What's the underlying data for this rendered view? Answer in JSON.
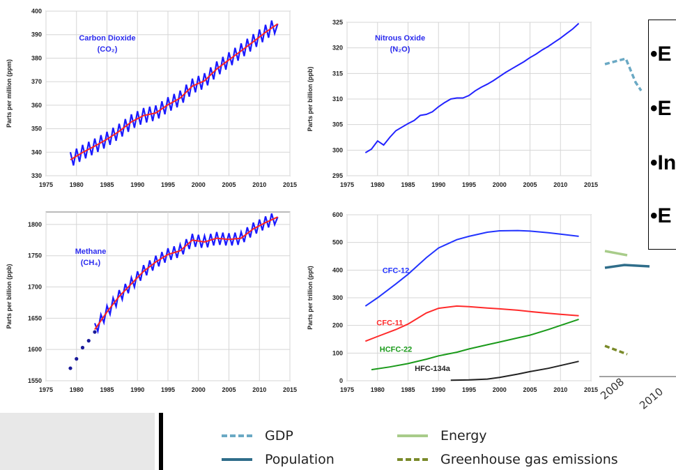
{
  "colors": {
    "co2_monthly": "#1a1aff",
    "co2_trend": "#ff2222",
    "n2o": "#2222ff",
    "ch4_monthly": "#1a1aff",
    "ch4_trend": "#ff2222",
    "ch4_flask": "#1a1a9a",
    "cfc12": "#2233ff",
    "cfc11": "#ff2a2a",
    "hcfc22": "#1a9a1a",
    "hfc134a": "#222222",
    "gdp": "#6aa9c4",
    "population": "#2f6d8a",
    "energy": "#a8cc8a",
    "ghg": "#7a8a2a"
  },
  "chart_data": [
    {
      "type": "line",
      "annotation": [
        "Carbon Dioxide",
        "(CO₂)"
      ],
      "ylabel": "Parts per million (ppm)",
      "xlim": [
        1975,
        2015
      ],
      "ylim": [
        330,
        400
      ],
      "xticks": [
        "1975",
        "1980",
        "1985",
        "1990",
        "1995",
        "2000",
        "2005",
        "2010",
        "2015"
      ],
      "yticks": [
        "330",
        "340",
        "350",
        "360",
        "370",
        "380",
        "390",
        "400"
      ],
      "series": [
        {
          "kind": "seasonal",
          "x": [
            1979,
            1981,
            1983,
            1985,
            1987,
            1989,
            1991,
            1993,
            1995,
            1997,
            1999,
            2001,
            2003,
            2005,
            2007,
            2009,
            2011,
            2013
          ],
          "y": [
            336.8,
            339.9,
            342.6,
            345.5,
            348.9,
            352.9,
            355.6,
            356.7,
            360.2,
            363.0,
            368.1,
            370.4,
            375.4,
            379.3,
            383.1,
            387.0,
            391.0,
            394.6
          ],
          "amplitude": 3.2
        },
        {
          "kind": "trend",
          "x": [
            1979,
            1981,
            1983,
            1985,
            1987,
            1989,
            1991,
            1993,
            1995,
            1997,
            1999,
            2001,
            2003,
            2005,
            2007,
            2009,
            2011,
            2013
          ],
          "y": [
            336.8,
            339.9,
            342.6,
            345.5,
            348.9,
            352.9,
            355.6,
            356.7,
            360.2,
            363.0,
            368.1,
            370.4,
            375.4,
            379.3,
            383.1,
            387.0,
            391.0,
            394.6
          ]
        }
      ]
    },
    {
      "type": "line",
      "annotation": [
        "Nitrous Oxide",
        "(N₂O)"
      ],
      "ylabel": "Parts per billion (ppb)",
      "xlim": [
        1975,
        2015
      ],
      "ylim": [
        295,
        325
      ],
      "xticks": [
        "1975",
        "1980",
        "1985",
        "1990",
        "1995",
        "2000",
        "2005",
        "2010",
        "2015"
      ],
      "yticks": [
        "295",
        "300",
        "305",
        "310",
        "315",
        "320",
        "325"
      ],
      "series": [
        {
          "x": [
            1978,
            1979,
            1980,
            1981,
            1982,
            1983,
            1984,
            1985,
            1986,
            1987,
            1988,
            1989,
            1990,
            1991,
            1992,
            1993,
            1994,
            1995,
            1996,
            1997,
            1998,
            1999,
            2000,
            2001,
            2002,
            2003,
            2004,
            2005,
            2006,
            2007,
            2008,
            2009,
            2010,
            2011,
            2012,
            2013
          ],
          "y": [
            299.5,
            300.2,
            301.8,
            301.0,
            302.5,
            303.8,
            304.5,
            305.2,
            305.8,
            306.8,
            307.0,
            307.5,
            308.5,
            309.3,
            310.0,
            310.2,
            310.2,
            310.7,
            311.6,
            312.3,
            312.9,
            313.6,
            314.4,
            315.2,
            315.9,
            316.6,
            317.3,
            318.1,
            318.8,
            319.6,
            320.3,
            321.1,
            321.9,
            322.8,
            323.7,
            324.8
          ]
        }
      ]
    },
    {
      "type": "line",
      "annotation": [
        "Methane",
        "(CH₄)"
      ],
      "ylabel": "Parts per billion (ppb)",
      "xlim": [
        1975,
        2015
      ],
      "ylim": [
        1550,
        1820
      ],
      "xticks": [
        "1975",
        "1980",
        "1985",
        "1990",
        "1995",
        "2000",
        "2005",
        "2010",
        "2015"
      ],
      "yticks": [
        "1550",
        "1600",
        "1650",
        "1700",
        "1750",
        "1800"
      ],
      "series": [
        {
          "kind": "flask",
          "x": [
            1979,
            1980,
            1981,
            1982,
            1983
          ],
          "y": [
            1570,
            1585,
            1603,
            1614,
            1628
          ]
        },
        {
          "kind": "seasonal",
          "x": [
            1983,
            1985,
            1987,
            1989,
            1991,
            1993,
            1995,
            1997,
            1999,
            2001,
            2003,
            2005,
            2007,
            2009,
            2011,
            2013
          ],
          "y": [
            1632,
            1660,
            1685,
            1705,
            1725,
            1740,
            1752,
            1758,
            1775,
            1772,
            1778,
            1776,
            1778,
            1793,
            1803,
            1812
          ],
          "amplitude": 10
        },
        {
          "kind": "trend",
          "x": [
            1983,
            1985,
            1987,
            1989,
            1991,
            1993,
            1995,
            1997,
            1999,
            2001,
            2003,
            2005,
            2007,
            2009,
            2011,
            2013
          ],
          "y": [
            1632,
            1660,
            1685,
            1705,
            1725,
            1740,
            1752,
            1758,
            1775,
            1772,
            1778,
            1776,
            1778,
            1793,
            1803,
            1812
          ]
        }
      ]
    },
    {
      "type": "line",
      "ylabel": "Parts per trillion (ppt)",
      "xlim": [
        1975,
        2015
      ],
      "ylim": [
        0,
        600
      ],
      "xticks": [
        "1975",
        "1980",
        "1985",
        "1990",
        "1995",
        "2000",
        "2005",
        "2010",
        "2015"
      ],
      "yticks": [
        "0",
        "100",
        "200",
        "300",
        "400",
        "500",
        "600"
      ],
      "series": [
        {
          "name": "CFC-12",
          "x": [
            1978,
            1980,
            1983,
            1985,
            1988,
            1990,
            1993,
            1995,
            1998,
            2000,
            2003,
            2005,
            2008,
            2010,
            2013
          ],
          "y": [
            270,
            300,
            350,
            385,
            445,
            480,
            510,
            522,
            537,
            542,
            543,
            541,
            535,
            530,
            522
          ]
        },
        {
          "name": "CFC-11",
          "x": [
            1978,
            1980,
            1983,
            1985,
            1988,
            1990,
            1993,
            1995,
            1998,
            2000,
            2003,
            2005,
            2008,
            2010,
            2013
          ],
          "y": [
            143,
            160,
            185,
            205,
            245,
            262,
            270,
            268,
            263,
            260,
            255,
            250,
            244,
            240,
            235
          ]
        },
        {
          "name": "HCFC-22",
          "x": [
            1979,
            1982,
            1985,
            1988,
            1990,
            1993,
            1995,
            1998,
            2000,
            2003,
            2005,
            2008,
            2010,
            2013
          ],
          "y": [
            40,
            50,
            62,
            78,
            90,
            103,
            115,
            130,
            140,
            155,
            165,
            185,
            200,
            222
          ]
        },
        {
          "name": "HFC-134a",
          "x": [
            1992,
            1995,
            1998,
            2000,
            2003,
            2005,
            2008,
            2010,
            2013
          ],
          "y": [
            2,
            3,
            6,
            12,
            24,
            33,
            45,
            55,
            70
          ]
        }
      ]
    }
  ],
  "bullets": [
    "•E",
    "•E",
    "•In",
    "•E"
  ],
  "background_axis_labels": [
    "2008",
    "2010"
  ],
  "legend": [
    {
      "label": "GDP",
      "style": "dashed",
      "color_key": "gdp"
    },
    {
      "label": "Energy",
      "style": "solid",
      "color_key": "energy"
    },
    {
      "label": "Population",
      "style": "solid",
      "color_key": "population"
    },
    {
      "label": "Greenhouse gas emissions",
      "style": "dashed",
      "color_key": "ghg"
    }
  ]
}
